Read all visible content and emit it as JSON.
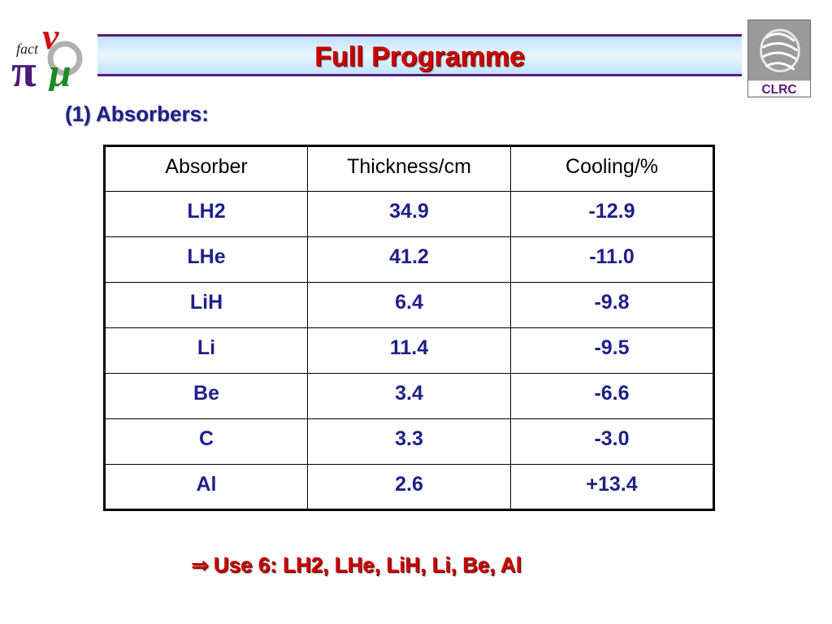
{
  "logos": {
    "left_logo_text": "fact",
    "right_logo_text": "CLRC"
  },
  "title": "Full Programme",
  "section": {
    "heading": "(1) Absorbers:"
  },
  "table": {
    "headers": [
      "Absorber",
      "Thickness/cm",
      "Cooling/%"
    ],
    "rows": [
      [
        "LH2",
        "34.9",
        "-12.9"
      ],
      [
        "LHe",
        "41.2",
        "-11.0"
      ],
      [
        "LiH",
        "6.4",
        "-9.8"
      ],
      [
        "Li",
        "11.4",
        "-9.5"
      ],
      [
        "Be",
        "3.4",
        "-6.6"
      ],
      [
        "C",
        "3.3",
        "-3.0"
      ],
      [
        "Al",
        "2.6",
        "+13.4"
      ]
    ]
  },
  "conclusion": {
    "arrow_icon": "⇒",
    "text": "Use 6: LH2, LHe, LiH, Li, Be, Al"
  },
  "colors": {
    "title_red": "#cc0000",
    "heading_blue": "#1f1f8a",
    "banner_border": "#5a1a7a",
    "banner_fill": "#bfe3ff"
  }
}
